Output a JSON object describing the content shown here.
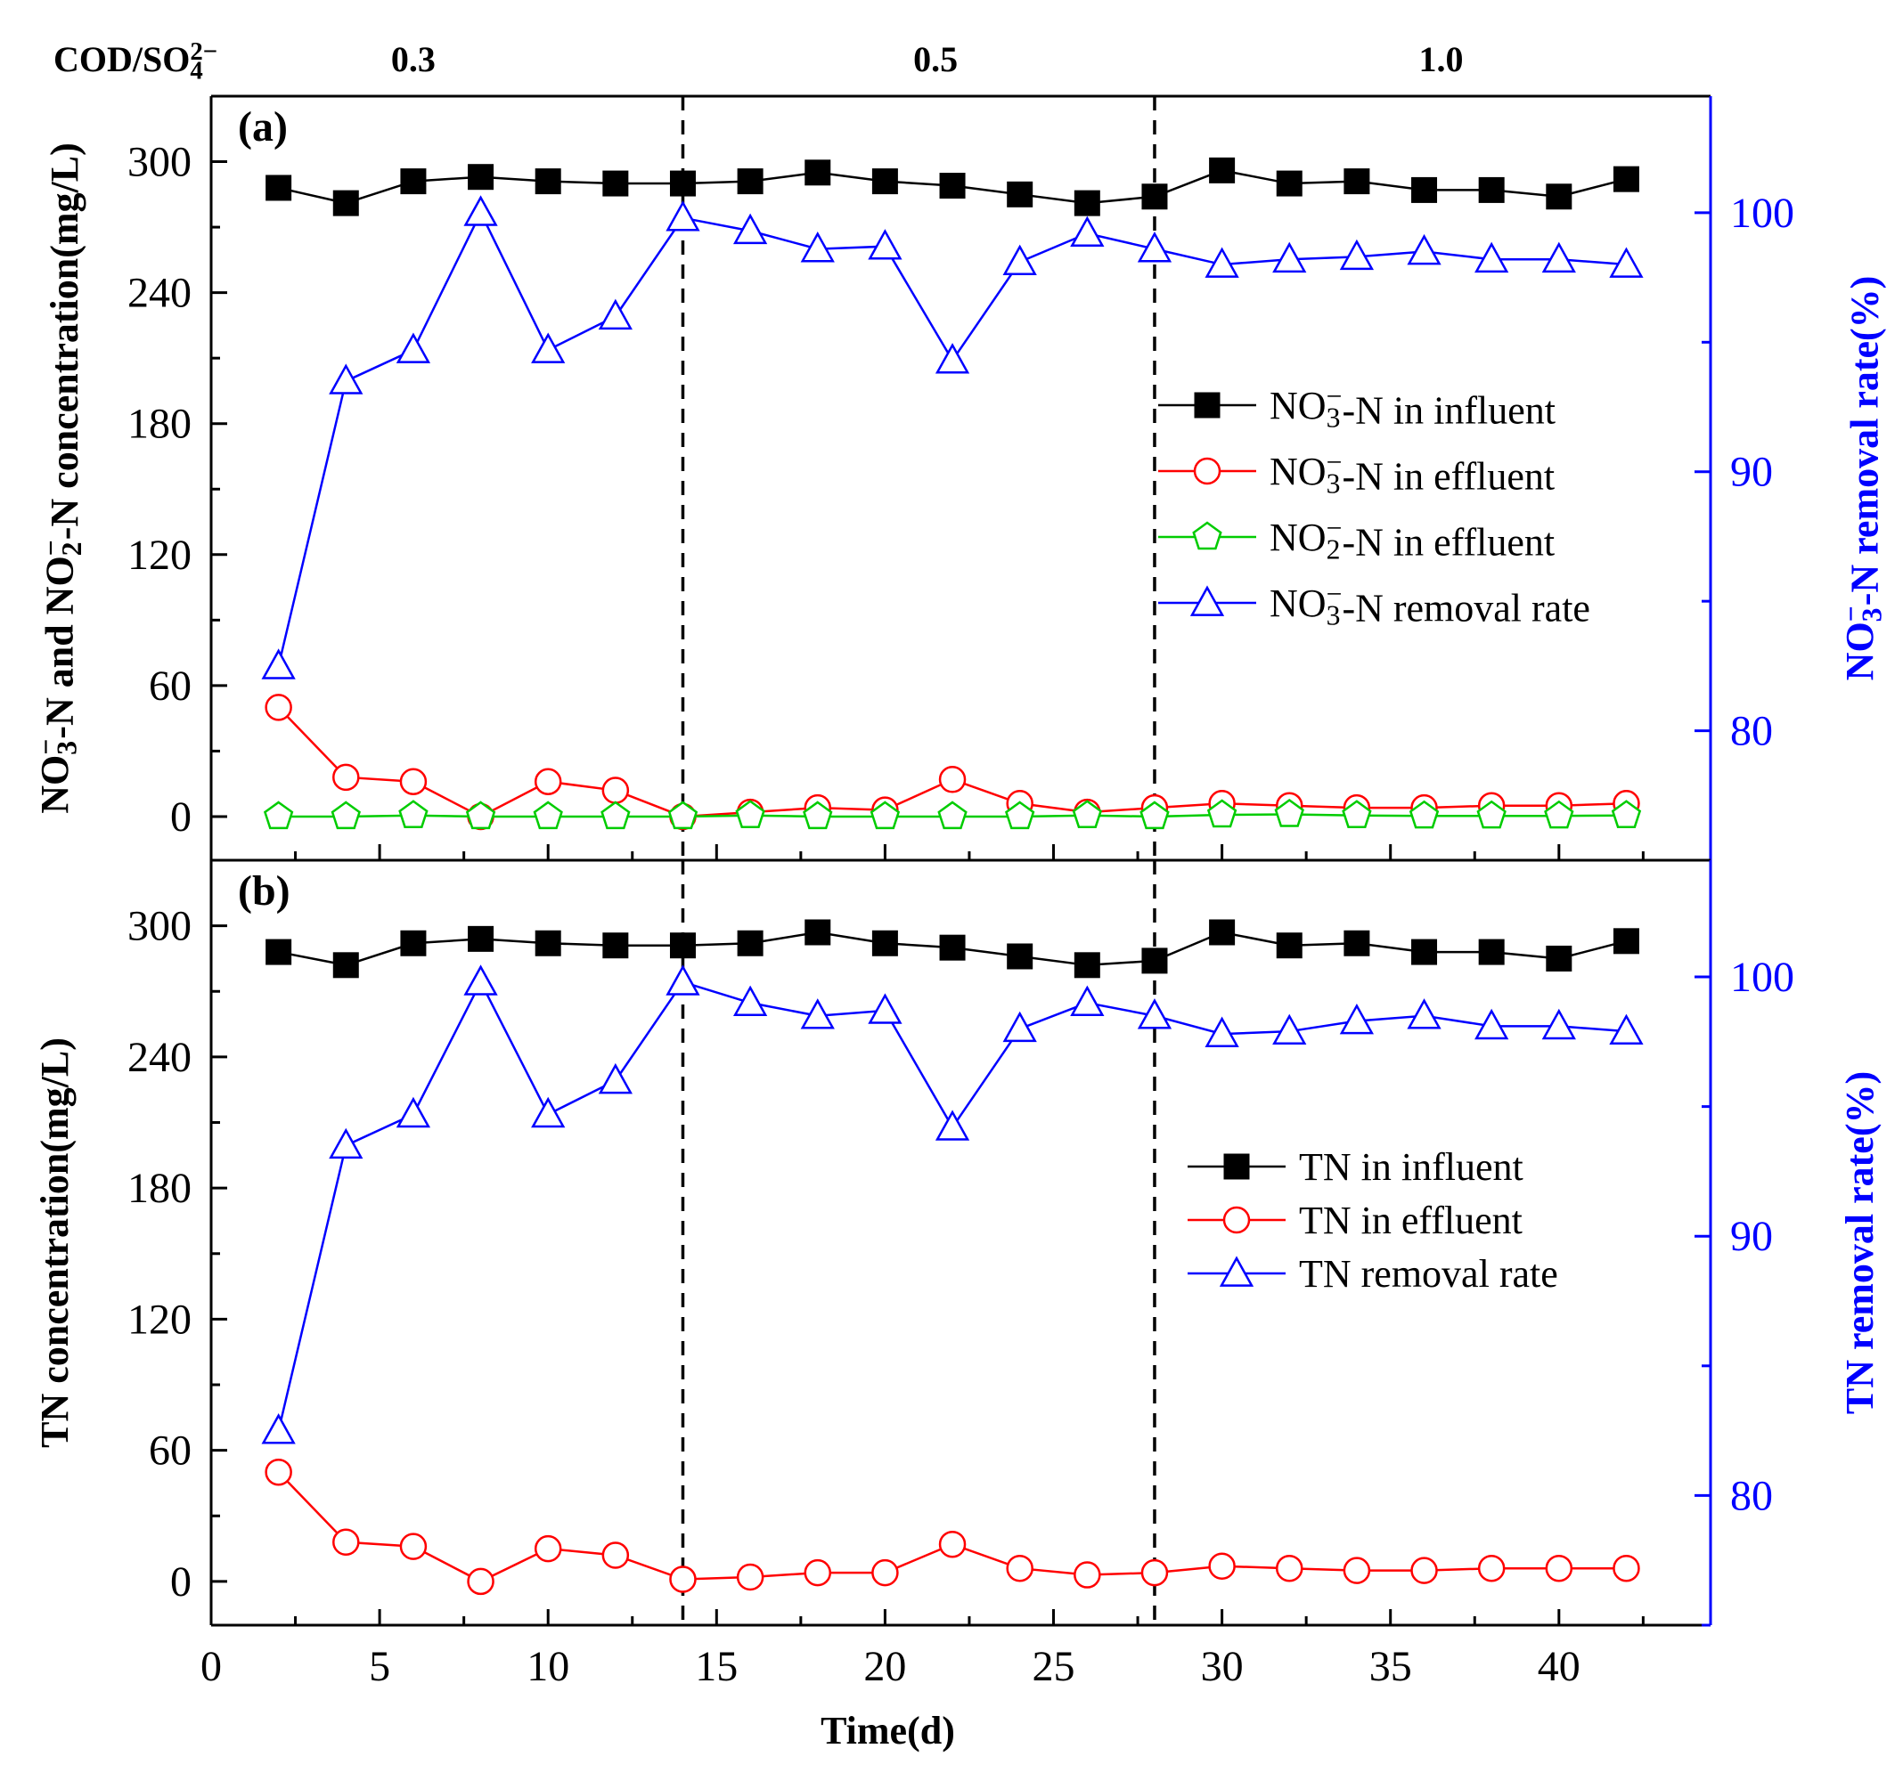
{
  "chart_data": [
    {
      "panel": "(a)",
      "type": "line",
      "x": [
        2,
        4,
        6,
        8,
        10,
        12,
        14,
        16,
        18,
        20,
        22,
        24,
        26,
        28,
        30,
        32,
        34,
        36,
        38,
        40,
        42
      ],
      "xlabel": "Time(d)",
      "xlim": [
        0,
        44.5
      ],
      "xticks": [
        0,
        5,
        10,
        15,
        20,
        25,
        30,
        35,
        40
      ],
      "ylabel_parts": [
        {
          "t": "NO"
        },
        {
          "t": "3",
          "s": "sub"
        },
        {
          "t": "−",
          "s": "sup"
        },
        {
          "t": "-N and NO"
        },
        {
          "t": "2",
          "s": "sub"
        },
        {
          "t": "−",
          "s": "sup"
        },
        {
          "t": "-N  concentration(mg/L)"
        }
      ],
      "ylim": [
        -20,
        330
      ],
      "yticks": [
        0,
        60,
        120,
        180,
        240,
        300
      ],
      "y2label_parts": [
        {
          "t": "NO"
        },
        {
          "t": "3",
          "s": "sub"
        },
        {
          "t": "−",
          "s": "sup"
        },
        {
          "t": "-N removal rate(%)"
        }
      ],
      "y2lim": [
        75,
        104.5
      ],
      "y2ticks": [
        80,
        90,
        100
      ],
      "series": [
        {
          "name_parts": [
            {
              "t": "NO"
            },
            {
              "t": "3",
              "s": "sub"
            },
            {
              "t": "−",
              "s": "sup"
            },
            {
              "t": "-N in influent"
            }
          ],
          "axis": "left",
          "marker": "square-filled",
          "color": "#000000",
          "values": [
            288,
            281,
            291,
            293,
            291,
            290,
            290,
            291,
            295,
            291,
            289,
            285,
            281,
            284,
            296,
            290,
            291,
            287,
            287,
            284,
            292
          ]
        },
        {
          "name_parts": [
            {
              "t": "NO"
            },
            {
              "t": "3",
              "s": "sub"
            },
            {
              "t": "−",
              "s": "sup"
            },
            {
              "t": "-N in effluent"
            }
          ],
          "axis": "left",
          "marker": "circle-open",
          "color": "#ff0000",
          "values": [
            50,
            18,
            16,
            0,
            16,
            12,
            0,
            2,
            4,
            3,
            17,
            6,
            2,
            4,
            6,
            5,
            4,
            4,
            5,
            5,
            6
          ]
        },
        {
          "name_parts": [
            {
              "t": "NO"
            },
            {
              "t": "2",
              "s": "sub"
            },
            {
              "t": "−",
              "s": "sup"
            },
            {
              "t": "-N in effluent"
            }
          ],
          "axis": "left",
          "marker": "pentagon-open",
          "color": "#00cc00",
          "values": [
            0,
            0,
            0.5,
            0,
            0,
            0,
            0,
            0.5,
            0,
            0,
            0,
            0,
            0.5,
            0,
            0.8,
            1,
            0.5,
            0.3,
            0.3,
            0.3,
            0.5
          ]
        },
        {
          "name_parts": [
            {
              "t": "NO"
            },
            {
              "t": "3",
              "s": "sub"
            },
            {
              "t": "−",
              "s": "sup"
            },
            {
              "t": "-N removal rate"
            }
          ],
          "axis": "right",
          "marker": "triangle-open",
          "color": "#0000ff",
          "values": [
            82.5,
            93.5,
            94.7,
            100,
            94.7,
            96,
            99.8,
            99.3,
            98.6,
            98.7,
            94.3,
            98.1,
            99.2,
            98.6,
            98,
            98.2,
            98.3,
            98.5,
            98.2,
            98.2,
            98
          ]
        }
      ],
      "legend": "right"
    },
    {
      "panel": "(b)",
      "type": "line",
      "x": [
        2,
        4,
        6,
        8,
        10,
        12,
        14,
        16,
        18,
        20,
        22,
        24,
        26,
        28,
        30,
        32,
        34,
        36,
        38,
        40,
        42
      ],
      "xlabel": "Time(d)",
      "xlim": [
        0,
        44.5
      ],
      "xticks": [
        0,
        5,
        10,
        15,
        20,
        25,
        30,
        35,
        40
      ],
      "ylabel_parts": [
        {
          "t": "TN concentration(mg/L)"
        }
      ],
      "ylim": [
        -20,
        330
      ],
      "yticks": [
        0,
        60,
        120,
        180,
        240,
        300
      ],
      "y2label_parts": [
        {
          "t": "TN removal rate(%)"
        }
      ],
      "y2lim": [
        75,
        104.5
      ],
      "y2ticks": [
        80,
        90,
        100
      ],
      "series": [
        {
          "name_parts": [
            {
              "t": "TN in influent"
            }
          ],
          "axis": "left",
          "marker": "square-filled",
          "color": "#000000",
          "values": [
            288,
            282,
            292,
            294,
            292,
            291,
            291,
            292,
            297,
            292,
            290,
            286,
            282,
            284,
            297,
            291,
            292,
            288,
            288,
            285,
            293
          ]
        },
        {
          "name_parts": [
            {
              "t": "TN in effluent"
            }
          ],
          "axis": "left",
          "marker": "circle-open",
          "color": "#ff0000",
          "values": [
            50,
            18,
            16,
            0,
            15,
            12,
            1,
            2,
            4,
            4,
            17,
            6,
            3,
            4,
            7,
            6,
            5,
            5,
            6,
            6,
            6
          ]
        },
        {
          "name_parts": [
            {
              "t": "TN removal rate"
            }
          ],
          "axis": "right",
          "marker": "triangle-open",
          "color": "#0000ff",
          "values": [
            82.5,
            93.5,
            94.7,
            99.8,
            94.7,
            96,
            99.8,
            99,
            98.5,
            98.7,
            94.2,
            98,
            99,
            98.5,
            97.8,
            97.9,
            98.3,
            98.5,
            98.1,
            98.1,
            97.9
          ]
        }
      ],
      "legend": "right"
    }
  ],
  "phases": {
    "header_parts": [
      {
        "t": "COD/SO"
      },
      {
        "t": "4",
        "s": "sub"
      },
      {
        "t": "2−",
        "s": "sup"
      }
    ],
    "dividers_x": [
      14,
      28
    ],
    "ratios": [
      {
        "label": "0.3",
        "x": 6
      },
      {
        "label": "0.5",
        "x": 21.5
      },
      {
        "label": "1.0",
        "x": 36.5
      }
    ]
  }
}
